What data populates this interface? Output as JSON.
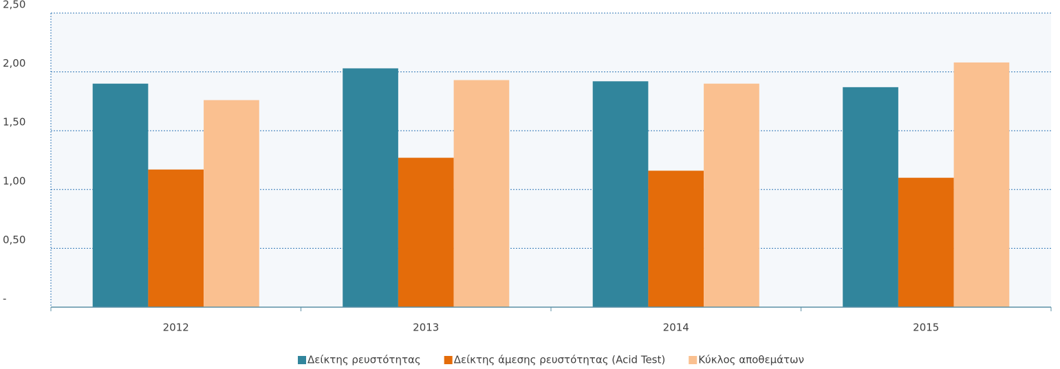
{
  "chart_data": {
    "type": "bar",
    "categories": [
      "2012",
      "2013",
      "2014",
      "2015"
    ],
    "series": [
      {
        "name": "Δείκτης ρευστότητας",
        "color": "#31859c",
        "values": [
          1.9,
          2.03,
          1.92,
          1.87
        ]
      },
      {
        "name": "Δείκτης άμεσης ρευστότητας (Acid Test)",
        "color": "#e46c0a",
        "values": [
          1.17,
          1.27,
          1.16,
          1.1
        ]
      },
      {
        "name": "Κύκλος αποθεμάτων",
        "color": "#fac090",
        "values": [
          1.76,
          1.93,
          1.9,
          2.08
        ]
      }
    ],
    "ylim": [
      0,
      2.5
    ],
    "yticks": [
      {
        "value": 0,
        "label": "-"
      },
      {
        "value": 0.5,
        "label": "0,50"
      },
      {
        "value": 1,
        "label": "1,00"
      },
      {
        "value": 1.5,
        "label": "1,50"
      },
      {
        "value": 2,
        "label": "2,00"
      },
      {
        "value": 2.5,
        "label": "2,50"
      }
    ],
    "grid": true,
    "legend": "bottom"
  }
}
